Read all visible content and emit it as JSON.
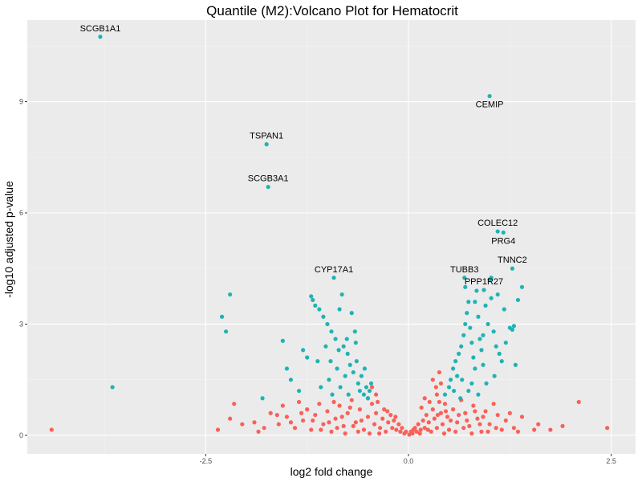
{
  "chart_data": {
    "type": "scatter",
    "title": "Quantile (M2):Volcano Plot for Hematocrit",
    "xlabel": "log2 fold change",
    "ylabel": "-log10 adjusted p-value",
    "xlim": [
      -4.7,
      2.8
    ],
    "ylim": [
      -0.5,
      11.2
    ],
    "x_ticks": [
      {
        "value": -2.5,
        "label": "-2.5"
      },
      {
        "value": 0.0,
        "label": "0.0"
      },
      {
        "value": 2.5,
        "label": "2.5"
      }
    ],
    "y_ticks": [
      {
        "value": 0,
        "label": "0"
      },
      {
        "value": 3,
        "label": "3"
      },
      {
        "value": 6,
        "label": "6"
      },
      {
        "value": 9,
        "label": "9"
      }
    ],
    "grid": true,
    "colors": {
      "panel": "#ebebeb",
      "grid_major": "#ffffff",
      "significant": "#1fb3b5",
      "not_significant": "#f8615a"
    },
    "labeled_points": [
      {
        "gene": "SCGB1A1",
        "x": -3.8,
        "y": 10.75,
        "label_pos": "above"
      },
      {
        "gene": "CEMIP",
        "x": 1.0,
        "y": 9.15,
        "label_pos": "below"
      },
      {
        "gene": "TSPAN1",
        "x": -1.75,
        "y": 7.85,
        "label_pos": "above"
      },
      {
        "gene": "SCGB3A1",
        "x": -1.73,
        "y": 6.7,
        "label_pos": "above"
      },
      {
        "gene": "COLEC12",
        "x": 1.1,
        "y": 5.5,
        "label_pos": "above"
      },
      {
        "gene": "PRG4",
        "x": 1.17,
        "y": 5.47,
        "label_pos": "below"
      },
      {
        "gene": "TNNC2",
        "x": 1.28,
        "y": 4.5,
        "label_pos": "above"
      },
      {
        "gene": "CYP17A1",
        "x": -0.92,
        "y": 4.25,
        "label_pos": "above"
      },
      {
        "gene": "TUBB3",
        "x": 0.69,
        "y": 4.25,
        "label_pos": "above"
      },
      {
        "gene": "PPP1R27",
        "x": 0.93,
        "y": 3.92,
        "label_pos": "above"
      }
    ],
    "significant_points": [
      [
        -3.65,
        1.3
      ],
      [
        -2.2,
        3.8
      ],
      [
        -2.3,
        3.2
      ],
      [
        -2.25,
        2.8
      ],
      [
        -1.8,
        1.0
      ],
      [
        -1.55,
        2.55
      ],
      [
        -1.5,
        1.8
      ],
      [
        -1.45,
        1.5
      ],
      [
        -1.3,
        2.3
      ],
      [
        -1.25,
        2.1
      ],
      [
        -1.35,
        1.2
      ],
      [
        -1.2,
        3.75
      ],
      [
        -1.18,
        3.65
      ],
      [
        -1.15,
        3.5
      ],
      [
        -1.1,
        3.4
      ],
      [
        -1.05,
        3.2
      ],
      [
        -1.0,
        3.0
      ],
      [
        -0.95,
        2.8
      ],
      [
        -0.9,
        2.6
      ],
      [
        -0.85,
        3.4
      ],
      [
        -0.82,
        3.8
      ],
      [
        -0.8,
        2.4
      ],
      [
        -0.75,
        2.2
      ],
      [
        -0.7,
        3.3
      ],
      [
        -0.72,
        1.9
      ],
      [
        -0.68,
        1.7
      ],
      [
        -0.65,
        2.5
      ],
      [
        -0.62,
        1.4
      ],
      [
        -0.6,
        1.2
      ],
      [
        -0.78,
        1.6
      ],
      [
        -0.88,
        1.8
      ],
      [
        -0.98,
        1.5
      ],
      [
        -1.08,
        1.3
      ],
      [
        -1.12,
        2.0
      ],
      [
        -0.58,
        1.6
      ],
      [
        -0.55,
        1.1
      ],
      [
        -0.52,
        1.3
      ],
      [
        -0.5,
        1.0
      ],
      [
        -0.48,
        1.2
      ],
      [
        -0.66,
        2.8
      ],
      [
        -0.76,
        2.6
      ],
      [
        -0.86,
        2.3
      ],
      [
        -0.96,
        2.0
      ],
      [
        -1.02,
        2.4
      ],
      [
        -0.74,
        1.1
      ],
      [
        -0.84,
        1.3
      ],
      [
        -0.94,
        1.1
      ],
      [
        -0.64,
        2.0
      ],
      [
        -0.54,
        1.8
      ],
      [
        -0.46,
        1.4
      ],
      [
        0.45,
        1.1
      ],
      [
        0.5,
        1.3
      ],
      [
        0.52,
        1.5
      ],
      [
        0.55,
        1.8
      ],
      [
        0.58,
        2.0
      ],
      [
        0.6,
        1.6
      ],
      [
        0.62,
        2.2
      ],
      [
        0.65,
        2.4
      ],
      [
        0.68,
        2.7
      ],
      [
        0.7,
        3.0
      ],
      [
        0.72,
        3.3
      ],
      [
        0.74,
        3.6
      ],
      [
        0.76,
        2.9
      ],
      [
        0.78,
        2.5
      ],
      [
        0.8,
        2.1
      ],
      [
        0.82,
        1.8
      ],
      [
        0.84,
        3.9
      ],
      [
        0.86,
        3.2
      ],
      [
        0.88,
        2.6
      ],
      [
        0.9,
        2.3
      ],
      [
        0.92,
        1.9
      ],
      [
        0.95,
        3.5
      ],
      [
        0.98,
        3.0
      ],
      [
        1.0,
        4.2
      ],
      [
        1.02,
        3.7
      ],
      [
        1.05,
        2.8
      ],
      [
        1.08,
        2.4
      ],
      [
        1.1,
        3.8
      ],
      [
        1.12,
        2.2
      ],
      [
        1.15,
        2.0
      ],
      [
        1.18,
        3.4
      ],
      [
        1.2,
        2.5
      ],
      [
        1.25,
        2.9
      ],
      [
        1.28,
        2.85
      ],
      [
        1.3,
        2.95
      ],
      [
        1.32,
        1.9
      ],
      [
        1.35,
        3.65
      ],
      [
        1.4,
        4.0
      ],
      [
        0.66,
        1.5
      ],
      [
        0.74,
        1.2
      ],
      [
        0.64,
        1.0
      ],
      [
        0.56,
        1.2
      ],
      [
        0.96,
        1.4
      ],
      [
        0.86,
        1.1
      ],
      [
        1.06,
        1.6
      ],
      [
        0.7,
        4.0
      ],
      [
        0.78,
        1.4
      ],
      [
        0.92,
        2.7
      ],
      [
        1.02,
        4.25
      ],
      [
        0.82,
        3.6
      ]
    ],
    "nonsignificant_points": [
      [
        -4.4,
        0.15
      ],
      [
        -2.35,
        0.15
      ],
      [
        -2.2,
        0.45
      ],
      [
        -2.15,
        0.85
      ],
      [
        -1.9,
        0.35
      ],
      [
        -1.85,
        0.1
      ],
      [
        -1.7,
        0.6
      ],
      [
        -1.6,
        0.3
      ],
      [
        -1.55,
        0.8
      ],
      [
        -1.5,
        0.5
      ],
      [
        -1.4,
        0.2
      ],
      [
        -1.35,
        0.9
      ],
      [
        -1.3,
        0.4
      ],
      [
        -1.25,
        0.7
      ],
      [
        -1.2,
        0.15
      ],
      [
        -1.15,
        0.55
      ],
      [
        -1.1,
        0.85
      ],
      [
        -1.05,
        0.3
      ],
      [
        -1.0,
        0.65
      ],
      [
        -0.95,
        0.1
      ],
      [
        -0.9,
        0.45
      ],
      [
        -0.85,
        0.8
      ],
      [
        -0.8,
        0.25
      ],
      [
        -0.75,
        0.6
      ],
      [
        -0.7,
        0.95
      ],
      [
        -0.65,
        0.35
      ],
      [
        -0.6,
        0.7
      ],
      [
        -0.55,
        0.15
      ],
      [
        -0.5,
        0.5
      ],
      [
        -0.45,
        0.85
      ],
      [
        -0.42,
        0.3
      ],
      [
        -0.4,
        0.6
      ],
      [
        -0.38,
        0.9
      ],
      [
        -0.35,
        0.2
      ],
      [
        -0.32,
        0.45
      ],
      [
        -0.3,
        0.7
      ],
      [
        -0.28,
        0.1
      ],
      [
        -0.25,
        0.35
      ],
      [
        -0.22,
        0.55
      ],
      [
        -0.2,
        0.2
      ],
      [
        -0.18,
        0.4
      ],
      [
        -0.15,
        0.15
      ],
      [
        -0.12,
        0.3
      ],
      [
        -0.1,
        0.1
      ],
      [
        -0.08,
        0.2
      ],
      [
        -0.05,
        0.05
      ],
      [
        -0.03,
        0.1
      ],
      [
        -0.5,
        1.0
      ],
      [
        -0.45,
        1.3
      ],
      [
        -0.4,
        1.1
      ],
      [
        -0.48,
        0.05
      ],
      [
        -0.62,
        0.1
      ],
      [
        -0.78,
        0.05
      ],
      [
        -0.88,
        0.2
      ],
      [
        -1.18,
        0.4
      ],
      [
        -1.32,
        0.6
      ],
      [
        -0.68,
        0.25
      ],
      [
        -0.58,
        0.4
      ],
      [
        -0.36,
        0.05
      ],
      [
        -0.26,
        0.65
      ],
      [
        -0.16,
        0.5
      ],
      [
        -0.72,
        0.75
      ],
      [
        -0.82,
        0.5
      ],
      [
        -0.92,
        0.9
      ],
      [
        -0.98,
        0.35
      ],
      [
        -1.08,
        0.15
      ],
      [
        -1.45,
        0.35
      ],
      [
        -1.62,
        0.55
      ],
      [
        -1.78,
        0.2
      ],
      [
        -2.05,
        0.3
      ],
      [
        0.03,
        0.1
      ],
      [
        0.05,
        0.05
      ],
      [
        0.08,
        0.2
      ],
      [
        0.1,
        0.1
      ],
      [
        0.12,
        0.3
      ],
      [
        0.15,
        0.15
      ],
      [
        0.18,
        0.4
      ],
      [
        0.2,
        0.2
      ],
      [
        0.22,
        0.55
      ],
      [
        0.25,
        0.35
      ],
      [
        0.28,
        0.1
      ],
      [
        0.3,
        0.7
      ],
      [
        0.32,
        0.45
      ],
      [
        0.35,
        0.2
      ],
      [
        0.38,
        0.9
      ],
      [
        0.4,
        0.6
      ],
      [
        0.42,
        0.3
      ],
      [
        0.45,
        0.85
      ],
      [
        0.48,
        0.5
      ],
      [
        0.5,
        0.15
      ],
      [
        0.55,
        0.7
      ],
      [
        0.6,
        0.35
      ],
      [
        0.65,
        0.95
      ],
      [
        0.7,
        0.6
      ],
      [
        0.75,
        0.25
      ],
      [
        0.8,
        0.8
      ],
      [
        0.85,
        0.45
      ],
      [
        0.9,
        0.1
      ],
      [
        0.95,
        0.65
      ],
      [
        1.0,
        0.3
      ],
      [
        1.05,
        0.85
      ],
      [
        1.1,
        0.55
      ],
      [
        1.15,
        0.15
      ],
      [
        1.2,
        0.4
      ],
      [
        1.3,
        0.2
      ],
      [
        1.4,
        0.5
      ],
      [
        1.55,
        0.15
      ],
      [
        1.6,
        0.3
      ],
      [
        1.75,
        0.15
      ],
      [
        1.9,
        0.25
      ],
      [
        2.1,
        0.9
      ],
      [
        2.45,
        0.2
      ],
      [
        0.35,
        1.1
      ],
      [
        0.4,
        1.4
      ],
      [
        0.38,
        1.7
      ],
      [
        0.34,
        1.3
      ],
      [
        0.2,
        1.0
      ],
      [
        0.3,
        1.5
      ],
      [
        0.16,
        0.75
      ],
      [
        0.26,
        0.9
      ],
      [
        0.44,
        0.05
      ],
      [
        0.58,
        0.1
      ],
      [
        0.68,
        0.2
      ],
      [
        0.78,
        0.05
      ],
      [
        0.88,
        0.3
      ],
      [
        0.98,
        0.1
      ],
      [
        1.08,
        0.2
      ],
      [
        1.25,
        0.6
      ],
      [
        1.35,
        0.1
      ],
      [
        0.52,
        0.4
      ],
      [
        0.62,
        0.55
      ],
      [
        0.72,
        0.4
      ],
      [
        0.82,
        0.65
      ],
      [
        0.92,
        0.5
      ],
      [
        0.46,
        0.65
      ],
      [
        0.36,
        0.55
      ],
      [
        0.24,
        0.15
      ],
      [
        0.14,
        0.05
      ],
      [
        0.06,
        0.15
      ],
      [
        0.01,
        0.02
      ]
    ]
  }
}
